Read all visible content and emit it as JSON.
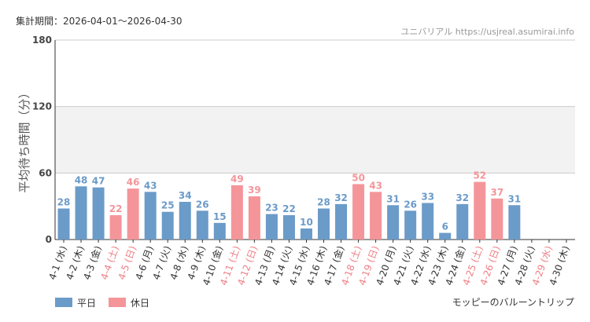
{
  "chart_data": {
    "type": "bar",
    "title": "集計期間：2026-04-01～2026-04-30",
    "source": "ユニバリアル  https://usjreal.asumirai.info",
    "y_label": "平均待ち時間（分）",
    "footer": "モッピーのバルーントリップ",
    "categories": [
      "4-1 (水)",
      "4-2 (木)",
      "4-3 (金)",
      "4-4 (土)",
      "4-5 (日)",
      "4-6 (月)",
      "4-7 (火)",
      "4-8 (水)",
      "4-9 (木)",
      "4-10 (金)",
      "4-11 (土)",
      "4-12 (日)",
      "4-13 (月)",
      "4-14 (火)",
      "4-15 (水)",
      "4-16 (木)",
      "4-17 (金)",
      "4-18 (土)",
      "4-19 (日)",
      "4-20 (月)",
      "4-21 (火)",
      "4-22 (水)",
      "4-23 (木)",
      "4-24 (金)",
      "4-25 (土)",
      "4-26 (日)",
      "4-27 (月)",
      "4-28 (火)",
      "4-29 (水)",
      "4-30 (木)"
    ],
    "category_colors": [
      "#333333",
      "#333333",
      "#333333",
      "#f07e84",
      "#f07e84",
      "#333333",
      "#333333",
      "#333333",
      "#333333",
      "#333333",
      "#f07e84",
      "#f07e84",
      "#333333",
      "#333333",
      "#333333",
      "#333333",
      "#333333",
      "#f07e84",
      "#f07e84",
      "#333333",
      "#333333",
      "#333333",
      "#333333",
      "#333333",
      "#f07e84",
      "#f07e84",
      "#333333",
      "#333333",
      "#f07e84",
      "#333333"
    ],
    "series": [
      {
        "name": "平日",
        "color": "#6b9bc8",
        "values": [
          28,
          48,
          47,
          null,
          null,
          43,
          25,
          34,
          26,
          15,
          null,
          null,
          23,
          22,
          10,
          28,
          32,
          null,
          null,
          31,
          26,
          33,
          6,
          32,
          null,
          null,
          31,
          null,
          null,
          null
        ]
      },
      {
        "name": "休日",
        "color": "#f4959a",
        "values": [
          null,
          null,
          null,
          22,
          46,
          null,
          null,
          null,
          null,
          null,
          49,
          39,
          null,
          null,
          null,
          null,
          null,
          50,
          43,
          null,
          null,
          null,
          null,
          null,
          52,
          37,
          null,
          null,
          null,
          null
        ]
      }
    ],
    "ylim": [
      0,
      180
    ],
    "yticks": [
      0,
      60,
      120,
      180
    ],
    "grid": true
  }
}
